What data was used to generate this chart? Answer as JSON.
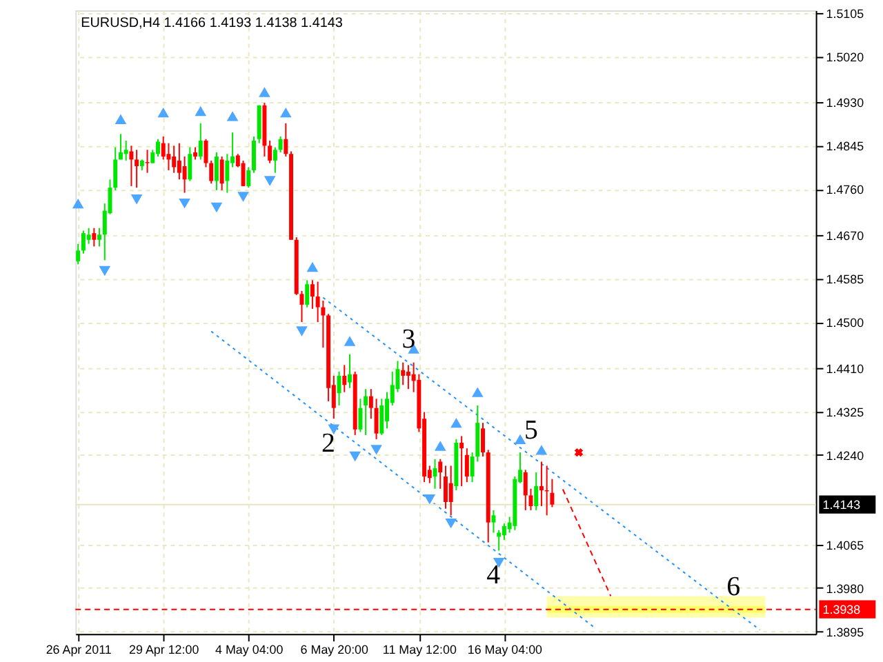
{
  "chart_data": {
    "type": "candlestick",
    "title": "EURUSD,H4  1.4166 1.4193 1.4138 1.4143",
    "categories": [
      "26 Apr 2011",
      null,
      null,
      null,
      null,
      null,
      null,
      null,
      null,
      null,
      null,
      null,
      null,
      null,
      null,
      null,
      "29 Apr 12:00",
      null,
      null,
      null,
      null,
      null,
      null,
      null,
      null,
      null,
      null,
      null,
      null,
      null,
      null,
      null,
      "4 May 04:00",
      null,
      null,
      null,
      null,
      null,
      null,
      null,
      null,
      null,
      null,
      null,
      null,
      null,
      null,
      null,
      "6 May 20:00",
      null,
      null,
      null,
      null,
      null,
      null,
      null,
      null,
      null,
      null,
      null,
      null,
      null,
      null,
      null,
      "11 May 12:00",
      null,
      null,
      null,
      null,
      null,
      null,
      null,
      null,
      null,
      null,
      null,
      null,
      null,
      null,
      null,
      "16 May 04:00",
      null,
      null,
      null,
      null,
      null,
      null,
      null,
      null,
      null,
      null,
      null,
      null,
      null,
      null,
      null,
      null,
      null,
      null,
      null,
      null,
      null,
      null,
      null,
      null,
      null,
      null,
      null,
      null,
      null,
      null,
      null,
      null,
      null,
      null,
      null,
      null,
      null,
      null,
      null,
      null,
      null,
      null,
      null,
      null,
      null,
      null,
      null,
      null,
      null,
      null,
      null,
      null,
      null,
      null,
      null,
      null,
      null,
      null
    ],
    "ohlc": [
      [
        1.4619,
        1.4653,
        1.4613,
        1.464
      ],
      [
        1.464,
        1.4679,
        1.4634,
        1.4674
      ],
      [
        1.4661,
        1.4684,
        1.4653,
        1.4671
      ],
      [
        1.4674,
        1.4684,
        1.4648,
        1.4661
      ],
      [
        1.4661,
        1.4684,
        1.4648,
        1.4671
      ],
      [
        1.4671,
        1.4732,
        1.4621,
        1.4718
      ],
      [
        1.4713,
        1.4779,
        1.4711,
        1.4763
      ],
      [
        1.4763,
        1.4842,
        1.4758,
        1.4818
      ],
      [
        1.4818,
        1.4868,
        1.4818,
        1.4832
      ],
      [
        1.4829,
        1.4855,
        1.4816,
        1.4837
      ],
      [
        1.4834,
        1.4845,
        1.4766,
        1.4818
      ],
      [
        1.4818,
        1.4837,
        1.4763,
        1.4805
      ],
      [
        1.4805,
        1.4818,
        1.4797,
        1.4816
      ],
      [
        1.4813,
        1.4837,
        1.4792,
        1.4811
      ],
      [
        1.4811,
        1.4837,
        1.4811,
        1.4832
      ],
      [
        1.4829,
        1.4858,
        1.4824,
        1.4853
      ],
      [
        1.485,
        1.4863,
        1.4818,
        1.4824
      ],
      [
        1.4829,
        1.485,
        1.4797,
        1.4818
      ],
      [
        1.4824,
        1.4845,
        1.4792,
        1.4803
      ],
      [
        1.4816,
        1.485,
        1.4779,
        1.4792
      ],
      [
        1.4805,
        1.4824,
        1.4753,
        1.4779
      ],
      [
        1.4779,
        1.4842,
        1.4776,
        1.4829
      ],
      [
        1.4832,
        1.4842,
        1.4818,
        1.4824
      ],
      [
        1.4824,
        1.4889,
        1.4818,
        1.4855
      ],
      [
        1.4855,
        1.4858,
        1.4803,
        1.4811
      ],
      [
        1.4811,
        1.4816,
        1.4771,
        1.4776
      ],
      [
        1.4776,
        1.4832,
        1.4758,
        1.4824
      ],
      [
        1.4818,
        1.4824,
        1.4758,
        1.4771
      ],
      [
        1.4776,
        1.4829,
        1.4753,
        1.4816
      ],
      [
        1.4811,
        1.4871,
        1.4803,
        1.4824
      ],
      [
        1.4826,
        1.4829,
        1.4803,
        1.4805
      ],
      [
        1.4811,
        1.4816,
        1.4766,
        1.4766
      ],
      [
        1.4766,
        1.4803,
        1.4763,
        1.4797
      ],
      [
        1.4797,
        1.4863,
        1.4792,
        1.4855
      ],
      [
        1.4858,
        1.4924,
        1.485,
        1.4924
      ],
      [
        1.4924,
        1.4929,
        1.4824,
        1.4845
      ],
      [
        1.4845,
        1.4855,
        1.4811,
        1.4816
      ],
      [
        1.4816,
        1.4842,
        1.4792,
        1.4837
      ],
      [
        1.4837,
        1.4863,
        1.4832,
        1.4858
      ],
      [
        1.4858,
        1.4889,
        1.4824,
        1.4829
      ],
      [
        1.4829,
        1.4834,
        1.4661,
        1.4661
      ],
      [
        1.4661,
        1.4666,
        1.4553,
        1.4555
      ],
      [
        1.4555,
        1.4561,
        1.45,
        1.4534
      ],
      [
        1.4534,
        1.4582,
        1.4529,
        1.4574
      ],
      [
        1.4574,
        1.4582,
        1.4526,
        1.455
      ],
      [
        1.455,
        1.4579,
        1.45,
        1.4529
      ],
      [
        1.4529,
        1.4542,
        1.445,
        1.4513
      ],
      [
        1.4513,
        1.4516,
        1.4345,
        1.4371
      ],
      [
        1.4377,
        1.4395,
        1.4311,
        1.4332
      ],
      [
        1.4361,
        1.4403,
        1.4337,
        1.4395
      ],
      [
        1.4395,
        1.4416,
        1.4363,
        1.4377
      ],
      [
        1.4382,
        1.4437,
        1.4371,
        1.4398
      ],
      [
        1.4398,
        1.4403,
        1.4279,
        1.429
      ],
      [
        1.429,
        1.435,
        1.4285,
        1.4332
      ],
      [
        1.4337,
        1.4369,
        1.4279,
        1.4355
      ],
      [
        1.4355,
        1.4369,
        1.4311,
        1.4332
      ],
      [
        1.4332,
        1.435,
        1.4271,
        1.4282
      ],
      [
        1.4282,
        1.435,
        1.4279,
        1.4337
      ],
      [
        1.4306,
        1.4363,
        1.4292,
        1.435
      ],
      [
        1.4342,
        1.4403,
        1.4337,
        1.4377
      ],
      [
        1.4369,
        1.4424,
        1.4363,
        1.4408
      ],
      [
        1.4406,
        1.4421,
        1.4377,
        1.4395
      ],
      [
        1.4403,
        1.4416,
        1.4369,
        1.4395
      ],
      [
        1.4398,
        1.4421,
        1.4363,
        1.4385
      ],
      [
        1.4387,
        1.4398,
        1.4285,
        1.4292
      ],
      [
        1.4311,
        1.4324,
        1.4187,
        1.4198
      ],
      [
        1.4211,
        1.4219,
        1.4185,
        1.4195
      ],
      [
        1.4198,
        1.4232,
        1.4174,
        1.4214
      ],
      [
        1.4227,
        1.4232,
        1.4174,
        1.4206
      ],
      [
        1.4198,
        1.4219,
        1.4135,
        1.4148
      ],
      [
        1.4185,
        1.4219,
        1.4122,
        1.4148
      ],
      [
        1.4179,
        1.4271,
        1.4171,
        1.4264
      ],
      [
        1.4264,
        1.4277,
        1.4179,
        1.4253
      ],
      [
        1.424,
        1.4253,
        1.4187,
        1.4198
      ],
      [
        1.4198,
        1.4245,
        1.4187,
        1.4237
      ],
      [
        1.4237,
        1.4337,
        1.4227,
        1.4303
      ],
      [
        1.4292,
        1.4303,
        1.4237,
        1.4245
      ],
      [
        1.4245,
        1.425,
        1.4069,
        1.4108
      ],
      [
        1.4108,
        1.4132,
        1.4088,
        1.4122
      ],
      [
        1.408,
        1.4093,
        1.4053,
        1.4088
      ],
      [
        1.4083,
        1.4106,
        1.4074,
        1.4101
      ],
      [
        1.4095,
        1.4119,
        1.4088,
        1.4108
      ],
      [
        1.4101,
        1.4198,
        1.4093,
        1.4193
      ],
      [
        1.4187,
        1.4245,
        1.4185,
        1.4211
      ],
      [
        1.4206,
        1.4211,
        1.4132,
        1.4161
      ],
      [
        1.4161,
        1.4174,
        1.4132,
        1.414
      ],
      [
        1.414,
        1.4206,
        1.4132,
        1.4179
      ],
      [
        1.4179,
        1.4227,
        1.414,
        1.4171
      ],
      [
        1.4171,
        1.4219,
        1.4122,
        1.4169
      ],
      [
        1.4166,
        1.4193,
        1.4138,
        1.4143
      ],
      null,
      null,
      null,
      null,
      null,
      null,
      null,
      null,
      null,
      null,
      null,
      null,
      null,
      null,
      null,
      null,
      null,
      null,
      null,
      null,
      null,
      null,
      null,
      null,
      null,
      null,
      null,
      null,
      null,
      null,
      null,
      null,
      null,
      null,
      null,
      null,
      null,
      null,
      null,
      null,
      null,
      null,
      null,
      null,
      null,
      null,
      null,
      null,
      null
    ],
    "colors": [
      "#00e600",
      "#00e600",
      "#00e600",
      "#ff0000",
      "#00e600",
      "#00e600",
      "#00e600",
      "#00e600",
      "#00e600",
      "#00e600",
      "#ff0000",
      "#ff0000",
      "#00e600",
      "#ff0000",
      "#00e600",
      "#00e600",
      "#ff0000",
      "#ff0000",
      "#ff0000",
      "#ff0000",
      "#ff0000",
      "#00e600",
      "#ff0000",
      "#00e600",
      "#ff0000",
      "#ff0000",
      "#00e600",
      "#ff0000",
      "#00e600",
      "#00e600",
      "#ff0000",
      "#ff0000",
      "#00e600",
      "#00e600",
      "#00e600",
      "#ff0000",
      "#ff0000",
      "#00e600",
      "#00e600",
      "#ff0000",
      "#ff0000",
      "#ff0000",
      "#ff0000",
      "#00e600",
      "#ff0000",
      "#ff0000",
      "#ff0000",
      "#ff0000",
      "#ff0000",
      "#00e600",
      "#ff0000",
      "#00e600",
      "#ff0000",
      "#00e600",
      "#00e600",
      "#ff0000",
      "#ff0000",
      "#00e600",
      "#00e600",
      "#00e600",
      "#00e600",
      "#ff0000",
      "#ff0000",
      "#ff0000",
      "#ff0000",
      "#ff0000",
      "#ff0000",
      "#00e600",
      "#ff0000",
      "#ff0000",
      "#ff0000",
      "#00e600",
      "#ff0000",
      "#ff0000",
      "#00e600",
      "#00e600",
      "#ff0000",
      "#ff0000",
      "#00e600",
      "#00e600",
      "#00e600",
      "#00e600",
      "#00e600",
      "#00e600",
      "#ff0000",
      "#ff0000",
      "#00e600",
      "#ff0000",
      "#ff0000",
      "#ff0000",
      null,
      null,
      null,
      null,
      null,
      null,
      null,
      null,
      null,
      null,
      null,
      null,
      null,
      null,
      null,
      null,
      null,
      null,
      null,
      null,
      null,
      null,
      null,
      null,
      null,
      null,
      null,
      null,
      null,
      null,
      null,
      null,
      null,
      null,
      null,
      null,
      null,
      null,
      null,
      null,
      null,
      null,
      null,
      null,
      null,
      null,
      null,
      null,
      null
    ],
    "series": [
      {
        "type": "line",
        "color": "#ffff66",
        "values": [
          null,
          null,
          null,
          null,
          null,
          null,
          null,
          null,
          null,
          null,
          null,
          null,
          null,
          null,
          null,
          null,
          null,
          null,
          null,
          null,
          null,
          null,
          null,
          null,
          null,
          null,
          null,
          null,
          null,
          null,
          null,
          null,
          null,
          null,
          null,
          null,
          null,
          null,
          null,
          null,
          null,
          null,
          null,
          null,
          null,
          null,
          null,
          null,
          null,
          null,
          null,
          null,
          null,
          null,
          null,
          null,
          null,
          null,
          null,
          null,
          null,
          null,
          null,
          null,
          null,
          null,
          null,
          null,
          null,
          null,
          null,
          null,
          null,
          null,
          null,
          null,
          null,
          null,
          null,
          null,
          null,
          null,
          null,
          null,
          null,
          null,
          null,
          null,
          1.3938,
          null,
          null,
          null,
          null,
          null,
          null,
          null,
          null,
          null,
          null,
          null,
          null,
          null,
          null,
          null,
          null,
          null,
          null,
          null,
          null,
          null,
          null,
          null,
          null,
          null,
          null,
          null,
          null,
          null,
          null,
          null,
          null,
          null,
          null,
          null,
          null,
          null,
          null,
          null,
          null,
          1.3938,
          null,
          null,
          null,
          null,
          null,
          null,
          null,
          null,
          null
        ],
        "lower": [
          null,
          null,
          null,
          null,
          null,
          null,
          null,
          null,
          null,
          null,
          null,
          null,
          null,
          null,
          null,
          null,
          null,
          null,
          null,
          null,
          null,
          null,
          null,
          null,
          null,
          null,
          null,
          null,
          null,
          null,
          null,
          null,
          null,
          null,
          null,
          null,
          null,
          null,
          null,
          null,
          null,
          null,
          null,
          null,
          null,
          null,
          null,
          null,
          null,
          null,
          null,
          null,
          null,
          null,
          null,
          null,
          null,
          null,
          null,
          null,
          null,
          null,
          null,
          null,
          null,
          null,
          null,
          null,
          null,
          null,
          null,
          null,
          null,
          null,
          null,
          null,
          null,
          null,
          null,
          null,
          null,
          null,
          null,
          null,
          null,
          null,
          null,
          null,
          1.3922,
          null,
          null,
          null,
          null,
          null,
          null,
          null,
          null,
          null,
          null,
          null,
          null,
          null,
          null,
          null,
          null,
          null,
          null,
          null,
          null,
          null,
          null,
          null,
          null,
          null,
          null,
          null,
          null,
          null,
          null,
          null,
          null,
          null,
          null,
          null,
          null,
          null,
          null,
          null,
          null,
          1.3922,
          null,
          null,
          null,
          null,
          null,
          null,
          null,
          null,
          null
        ],
        "upper": [
          null,
          null,
          null,
          null,
          null,
          null,
          null,
          null,
          null,
          null,
          null,
          null,
          null,
          null,
          null,
          null,
          null,
          null,
          null,
          null,
          null,
          null,
          null,
          null,
          null,
          null,
          null,
          null,
          null,
          null,
          null,
          null,
          null,
          null,
          null,
          null,
          null,
          null,
          null,
          null,
          null,
          null,
          null,
          null,
          null,
          null,
          null,
          null,
          null,
          null,
          null,
          null,
          null,
          null,
          null,
          null,
          null,
          null,
          null,
          null,
          null,
          null,
          null,
          null,
          null,
          null,
          null,
          null,
          null,
          null,
          null,
          null,
          null,
          null,
          null,
          null,
          null,
          null,
          null,
          null,
          null,
          null,
          null,
          null,
          null,
          null,
          null,
          null,
          1.3964,
          null,
          null,
          null,
          null,
          null,
          null,
          null,
          null,
          null,
          null,
          null,
          null,
          null,
          null,
          null,
          null,
          null,
          null,
          null,
          null,
          null,
          null,
          null,
          null,
          null,
          null,
          null,
          null,
          null,
          null,
          null,
          null,
          null,
          null,
          null,
          null,
          null,
          null,
          null,
          null,
          1.3964,
          null,
          null,
          null,
          null,
          null,
          null,
          null,
          null,
          null
        ]
      },
      {
        "type": "line",
        "color": "#1e90ff",
        "line_style": "dotted",
        "values": [
          null,
          null,
          null,
          null,
          null,
          null,
          null,
          null,
          null,
          null,
          null,
          null,
          null,
          null,
          null,
          null,
          null,
          null,
          null,
          null,
          null,
          null,
          null,
          null,
          null,
          null,
          null,
          null,
          null,
          null,
          null,
          null,
          null,
          null,
          null,
          null,
          null,
          null,
          null,
          null,
          null,
          null,
          null,
          null,
          null,
          null,
          1.4548,
          null,
          null,
          null,
          null,
          null,
          null,
          null,
          null,
          null,
          null,
          null,
          null,
          null,
          null,
          null,
          null,
          null,
          null,
          null,
          null,
          null,
          null,
          null,
          null,
          null,
          null,
          null,
          null,
          null,
          null,
          null,
          null,
          null,
          null,
          null,
          null,
          null,
          null,
          null,
          null,
          null,
          null,
          null,
          null,
          null,
          null,
          null,
          null,
          null,
          null,
          null,
          null,
          null,
          null,
          null,
          null,
          null,
          null,
          null,
          null,
          null,
          null,
          null,
          null,
          null,
          null,
          null,
          null,
          null,
          null,
          null,
          null,
          null,
          null,
          null,
          1.3945,
          null,
          null,
          null,
          null,
          null,
          1.3898,
          null,
          null,
          null,
          null,
          null,
          null,
          null,
          null,
          null,
          null
        ]
      },
      {
        "type": "line",
        "color": "#1e90ff",
        "line_style": "dotted",
        "values": [
          null,
          null,
          null,
          null,
          null,
          null,
          null,
          null,
          null,
          null,
          null,
          null,
          null,
          null,
          null,
          null,
          null,
          null,
          null,
          null,
          null,
          null,
          null,
          null,
          null,
          1.4482,
          null,
          null,
          null,
          null,
          null,
          null,
          null,
          null,
          null,
          null,
          null,
          null,
          null,
          null,
          null,
          null,
          null,
          null,
          null,
          null,
          null,
          null,
          null,
          null,
          null,
          null,
          null,
          null,
          null,
          null,
          null,
          null,
          null,
          null,
          null,
          null,
          null,
          null,
          null,
          null,
          null,
          null,
          null,
          null,
          null,
          null,
          null,
          null,
          null,
          null,
          null,
          null,
          null,
          null,
          null,
          null,
          null,
          null,
          null,
          null,
          null,
          null,
          null,
          null,
          null,
          null,
          null,
          null,
          null,
          null,
          null,
          1.3902,
          null,
          null,
          null,
          null,
          null,
          null,
          null,
          null,
          null,
          null,
          null,
          null,
          null,
          null,
          null,
          null,
          null,
          null,
          null,
          null,
          null,
          null,
          null,
          null,
          null,
          null,
          null,
          null,
          null,
          null,
          null,
          null,
          null,
          null,
          null,
          null,
          null,
          null,
          null,
          null,
          null
        ]
      },
      {
        "type": "line",
        "color": "#ff0000",
        "line_style": "dashed",
        "values": [
          null,
          null,
          null,
          null,
          null,
          null,
          null,
          null,
          null,
          null,
          null,
          null,
          null,
          null,
          null,
          null,
          null,
          null,
          null,
          null,
          null,
          null,
          null,
          null,
          null,
          null,
          null,
          null,
          null,
          null,
          null,
          null,
          null,
          null,
          null,
          null,
          null,
          null,
          null,
          null,
          null,
          null,
          null,
          null,
          null,
          null,
          null,
          null,
          null,
          null,
          null,
          null,
          null,
          null,
          null,
          null,
          null,
          null,
          null,
          null,
          null,
          null,
          null,
          null,
          null,
          null,
          null,
          null,
          null,
          null,
          null,
          null,
          null,
          null,
          null,
          null,
          null,
          null,
          null,
          null,
          null,
          null,
          null,
          null,
          null,
          null,
          null,
          null,
          null,
          null,
          null,
          1.4173,
          null,
          null,
          null,
          null,
          null,
          null,
          null,
          null,
          1.3964,
          null,
          null,
          null,
          null,
          null,
          null,
          null,
          null,
          null,
          null,
          null,
          null,
          null,
          null,
          null,
          null,
          null,
          null,
          null,
          null,
          null,
          null,
          null,
          null,
          null,
          null,
          null,
          null,
          null,
          null,
          null,
          null,
          null,
          null,
          null,
          null,
          null,
          null
        ]
      },
      {
        "type": "scatter",
        "color": "#4da6ff",
        "marker": "triangle",
        "values": [
          1.4732,
          null,
          null,
          null,
          null,
          null,
          null,
          null,
          1.4897,
          null,
          null,
          null,
          null,
          null,
          null,
          null,
          1.491,
          null,
          null,
          null,
          null,
          null,
          null,
          1.4913,
          null,
          null,
          null,
          null,
          null,
          1.4903,
          null,
          null,
          null,
          null,
          null,
          1.495,
          null,
          null,
          null,
          1.491,
          null,
          null,
          null,
          null,
          1.4608,
          null,
          null,
          null,
          null,
          null,
          null,
          1.4463,
          null,
          null,
          null,
          null,
          null,
          null,
          null,
          null,
          null,
          null,
          null,
          1.4448,
          null,
          null,
          null,
          null,
          1.4258,
          null,
          null,
          1.4303,
          null,
          null,
          null,
          1.4363,
          null,
          null,
          null,
          null,
          null,
          null,
          null,
          1.4271,
          null,
          null,
          null,
          1.425,
          null,
          null,
          null,
          null,
          null,
          null,
          null,
          null,
          null,
          null,
          null,
          null,
          null,
          null,
          null,
          null,
          null,
          null,
          null,
          null,
          null,
          null,
          null,
          null,
          null,
          null,
          null,
          null,
          null,
          null,
          null,
          null,
          null,
          null,
          null,
          null,
          null,
          null,
          null,
          null,
          null,
          null,
          null,
          null,
          null,
          null,
          null,
          null,
          null,
          null,
          null
        ]
      },
      {
        "type": "scatter",
        "color": "#4da6ff",
        "marker": "triangle-down",
        "values": [
          null,
          null,
          null,
          null,
          null,
          1.46,
          null,
          null,
          null,
          null,
          null,
          1.474,
          null,
          null,
          null,
          null,
          null,
          null,
          null,
          null,
          1.4732,
          null,
          null,
          null,
          null,
          null,
          1.4724,
          null,
          null,
          null,
          null,
          1.4745,
          null,
          null,
          null,
          null,
          1.4776,
          null,
          null,
          null,
          null,
          null,
          1.4482,
          null,
          null,
          null,
          null,
          null,
          1.429,
          null,
          null,
          null,
          1.4237,
          null,
          null,
          null,
          1.425,
          null,
          null,
          null,
          null,
          null,
          null,
          null,
          null,
          null,
          1.4153,
          null,
          null,
          null,
          1.4106,
          null,
          null,
          null,
          null,
          null,
          null,
          null,
          null,
          1.4029,
          null,
          null,
          null,
          null,
          null,
          null,
          null,
          null,
          null,
          null,
          null,
          null,
          null,
          null,
          null,
          null,
          null,
          null,
          null,
          null,
          null,
          null,
          null,
          null,
          null,
          null,
          null,
          null,
          null,
          null,
          null,
          null,
          null,
          null,
          null,
          null,
          null,
          null,
          null,
          null,
          null,
          null,
          null,
          null,
          null,
          null,
          null,
          null,
          null,
          null,
          null,
          null,
          null,
          null,
          null,
          null,
          null,
          null,
          null
        ]
      },
      {
        "type": "scatter",
        "color": "#ff0000",
        "marker": "cross",
        "values": [
          null,
          null,
          null,
          null,
          null,
          null,
          null,
          null,
          null,
          null,
          null,
          null,
          null,
          null,
          null,
          null,
          null,
          null,
          null,
          null,
          null,
          null,
          null,
          null,
          null,
          null,
          null,
          null,
          null,
          null,
          null,
          null,
          null,
          null,
          null,
          null,
          null,
          null,
          null,
          null,
          null,
          null,
          null,
          null,
          null,
          null,
          null,
          null,
          null,
          null,
          null,
          null,
          null,
          null,
          null,
          null,
          null,
          null,
          null,
          null,
          null,
          null,
          null,
          null,
          null,
          null,
          null,
          null,
          null,
          null,
          null,
          null,
          null,
          null,
          null,
          null,
          null,
          null,
          null,
          null,
          null,
          null,
          null,
          null,
          null,
          null,
          null,
          null,
          null,
          null,
          null,
          null,
          null,
          null,
          1.4245,
          null,
          null,
          null,
          null,
          null,
          null,
          null,
          null,
          null,
          null,
          null,
          null,
          null,
          null,
          null,
          null,
          null,
          null,
          null,
          null,
          null,
          null,
          null,
          null,
          null,
          null,
          null,
          null,
          null,
          null,
          null,
          null,
          null,
          null,
          null,
          null,
          null,
          null,
          null,
          null,
          null,
          null,
          null,
          null
        ]
      }
    ],
    "ylim": [
      1.389,
      1.511
    ],
    "yticks": [
      {
        "value": 1.5105,
        "label": "1.5105"
      },
      {
        "value": 1.502,
        "label": "1.5020"
      },
      {
        "value": 1.493,
        "label": "1.4930"
      },
      {
        "value": 1.4845,
        "label": "1.4845"
      },
      {
        "value": 1.476,
        "label": "1.4760"
      },
      {
        "value": 1.467,
        "label": "1.4670"
      },
      {
        "value": 1.4585,
        "label": "1.4585"
      },
      {
        "value": 1.45,
        "label": "1.4500"
      },
      {
        "value": 1.441,
        "label": "1.4410"
      },
      {
        "value": 1.4325,
        "label": "1.4325"
      },
      {
        "value": 1.424,
        "label": "1.4240"
      },
      {
        "value": 1.4065,
        "label": "1.4065"
      },
      {
        "value": 1.398,
        "label": "1.3980"
      },
      {
        "value": 1.3895,
        "label": "1.3895"
      }
    ],
    "grid": true,
    "ref_lines": [
      {
        "axis": "y",
        "value": 1.4143,
        "label": "1.4143",
        "color": "#e8e4c4",
        "line_style": "solid"
      },
      {
        "axis": "y",
        "value": 1.3938,
        "label": "1.3938",
        "color": "#ff0000",
        "line_style": "dashed"
      }
    ],
    "annotations": [
      {
        "text": "3",
        "y": 1.4424
      },
      {
        "text": "2",
        "y": 1.4311
      },
      {
        "text": "4",
        "y": 1.4053
      },
      {
        "text": "5",
        "y": 1.4245
      },
      {
        "text": "6",
        "y": 1.3945
      }
    ]
  }
}
